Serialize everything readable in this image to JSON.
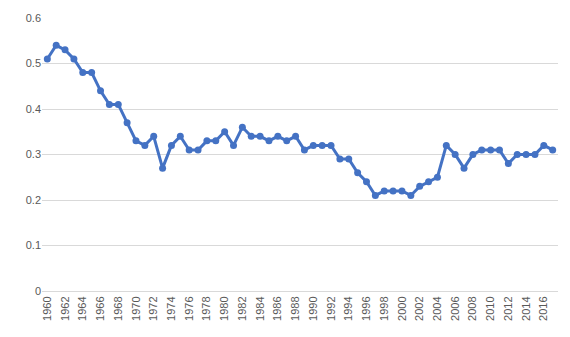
{
  "chart_data": {
    "type": "line",
    "categories": [
      "1960",
      null,
      "1962",
      null,
      "1964",
      null,
      "1966",
      null,
      "1968",
      null,
      "1970",
      null,
      "1972",
      null,
      "1974",
      null,
      "1976",
      null,
      "1978",
      null,
      "1980",
      null,
      "1982",
      null,
      "1984",
      null,
      "1986",
      null,
      "1988",
      null,
      "1990",
      null,
      "1992",
      null,
      "1994",
      null,
      "1996",
      null,
      "1998",
      null,
      "2000",
      null,
      "2002",
      null,
      "2004",
      null,
      "2006",
      null,
      "2008",
      null,
      "2010",
      null,
      "2012",
      null,
      "2014",
      null,
      "2016",
      null
    ],
    "values": [
      0.51,
      0.54,
      0.53,
      0.51,
      0.48,
      0.48,
      0.44,
      0.41,
      0.41,
      0.37,
      0.33,
      0.32,
      0.34,
      0.27,
      0.32,
      0.34,
      0.31,
      0.31,
      0.33,
      0.33,
      0.35,
      0.32,
      0.36,
      0.34,
      0.34,
      0.33,
      0.34,
      0.33,
      0.34,
      0.31,
      0.32,
      0.32,
      0.32,
      0.29,
      0.29,
      0.26,
      0.24,
      0.21,
      0.22,
      0.22,
      0.22,
      0.21,
      0.23,
      0.24,
      0.25,
      0.32,
      0.3,
      0.27,
      0.3,
      0.31,
      0.31,
      0.31,
      0.28,
      0.3,
      0.3,
      0.3,
      0.32,
      0.31
    ],
    "color": "#4472c4",
    "marker": "circle",
    "ylim": [
      0,
      0.6
    ],
    "yticks": [
      0,
      0.1,
      0.2,
      0.3,
      0.4,
      0.5,
      0.6
    ],
    "grid": true
  }
}
